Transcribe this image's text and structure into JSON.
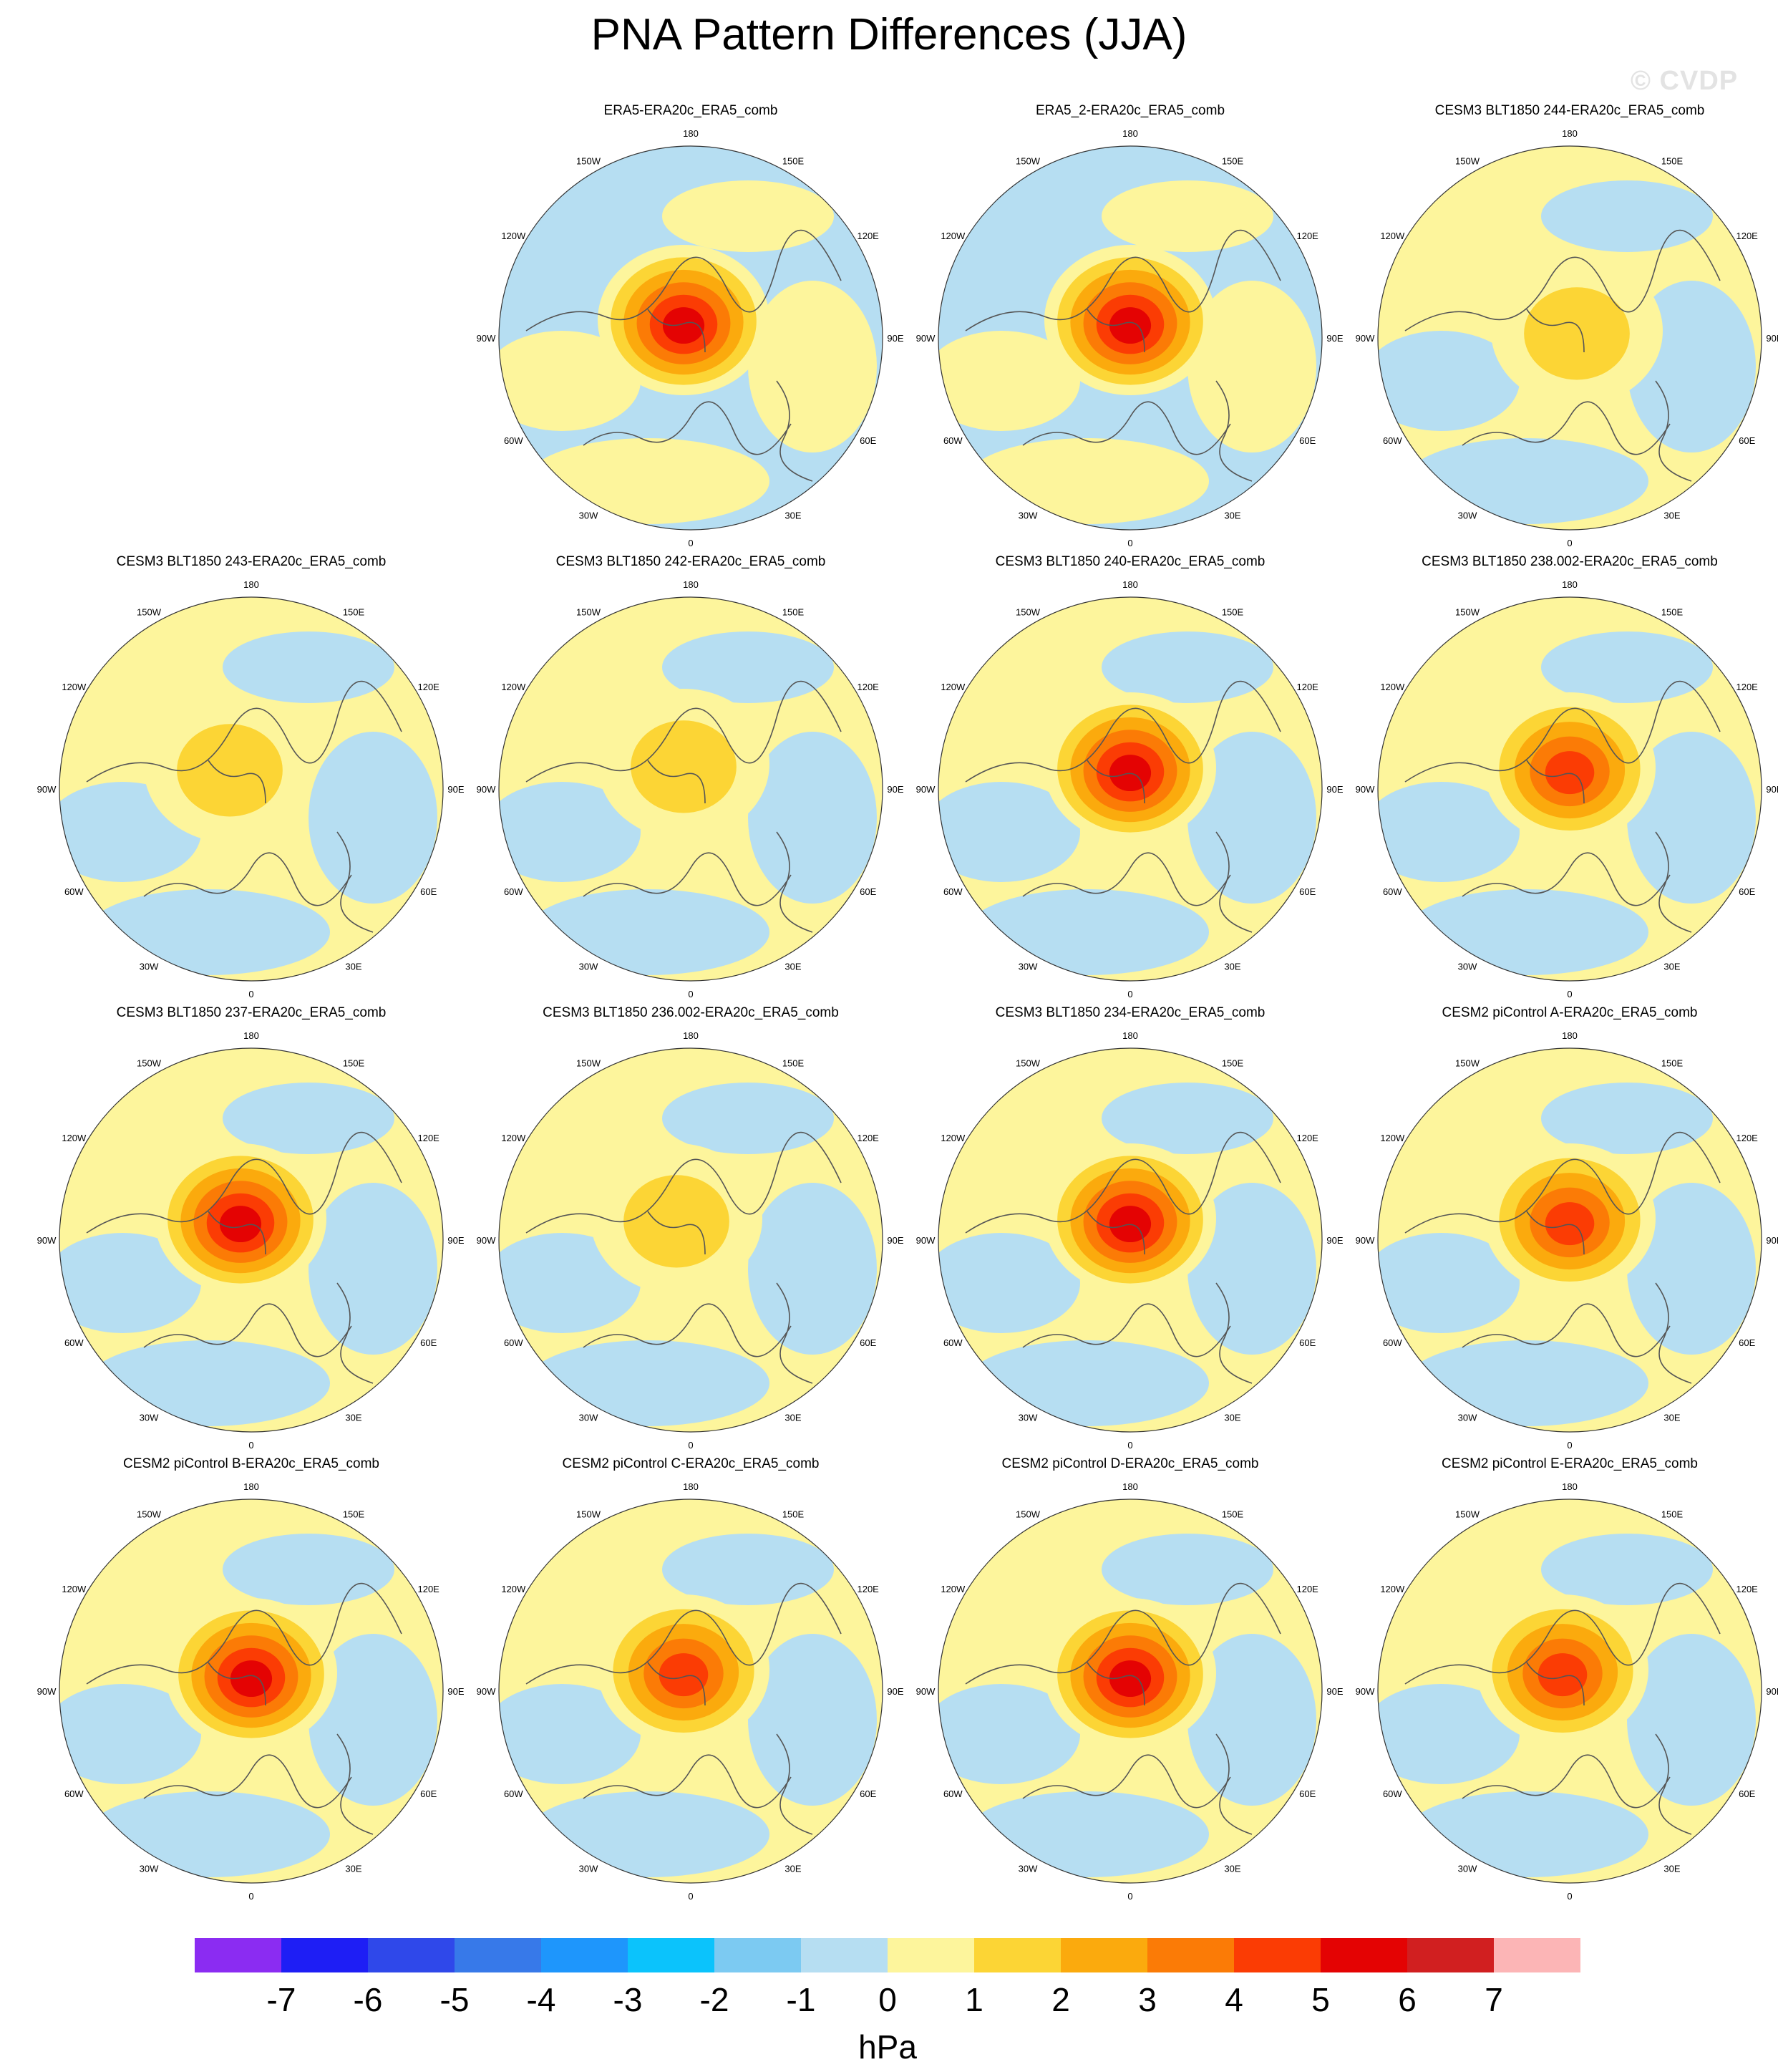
{
  "title": "PNA Pattern Differences (JJA)",
  "watermark": "© CVDP",
  "longitude_labels": [
    "180",
    "150E",
    "120E",
    "90E",
    "60E",
    "30E",
    "0",
    "30W",
    "60W",
    "90W",
    "120W",
    "150W"
  ],
  "colorbar": {
    "units": "hPa",
    "ticks": [
      "-7",
      "-6",
      "-5",
      "-4",
      "-3",
      "-2",
      "-1",
      "0",
      "1",
      "2",
      "3",
      "4",
      "5",
      "6",
      "7"
    ],
    "colors": [
      "#8b2cf2",
      "#1e1ef5",
      "#2f48ea",
      "#3779e9",
      "#1e96fc",
      "#0bc3fc",
      "#7ccaf2",
      "#b6def2",
      "#fdf59c",
      "#fcd535",
      "#fbaa0d",
      "#fb7b06",
      "#fb3c04",
      "#e40303",
      "#d11f20",
      "#fcb5b6"
    ]
  },
  "panels": [
    {
      "title": "ERA5-ERA20c_ERA5_comb",
      "max_level": 6,
      "background": "blue"
    },
    {
      "title": "ERA5_2-ERA20c_ERA5_comb",
      "max_level": 6,
      "background": "blue"
    },
    {
      "title": "CESM3 BLT1850 244-ERA20c_ERA5_comb",
      "max_level": 2,
      "background": "yellow"
    },
    {
      "title": "CESM3 BLT1850 243-ERA20c_ERA5_comb",
      "max_level": 2,
      "background": "yellow"
    },
    {
      "title": "CESM3 BLT1850 242-ERA20c_ERA5_comb",
      "max_level": 2,
      "background": "yellow"
    },
    {
      "title": "CESM3 BLT1850 240-ERA20c_ERA5_comb",
      "max_level": 6,
      "background": "yellow"
    },
    {
      "title": "CESM3 BLT1850 238.002-ERA20c_ERA5_comb",
      "max_level": 5,
      "background": "yellow"
    },
    {
      "title": "CESM3 BLT1850 237-ERA20c_ERA5_comb",
      "max_level": 6,
      "background": "yellow"
    },
    {
      "title": "CESM3 BLT1850 236.002-ERA20c_ERA5_comb",
      "max_level": 2,
      "background": "yellow"
    },
    {
      "title": "CESM3 BLT1850 234-ERA20c_ERA5_comb",
      "max_level": 6,
      "background": "yellow"
    },
    {
      "title": "CESM2 piControl A-ERA20c_ERA5_comb",
      "max_level": 5,
      "background": "yellow"
    },
    {
      "title": "CESM2 piControl B-ERA20c_ERA5_comb",
      "max_level": 6,
      "background": "yellow"
    },
    {
      "title": "CESM2 piControl C-ERA20c_ERA5_comb",
      "max_level": 5,
      "background": "yellow"
    },
    {
      "title": "CESM2 piControl D-ERA20c_ERA5_comb",
      "max_level": 6,
      "background": "yellow"
    },
    {
      "title": "CESM2 piControl E-ERA20c_ERA5_comb",
      "max_level": 5,
      "background": "yellow"
    }
  ]
}
